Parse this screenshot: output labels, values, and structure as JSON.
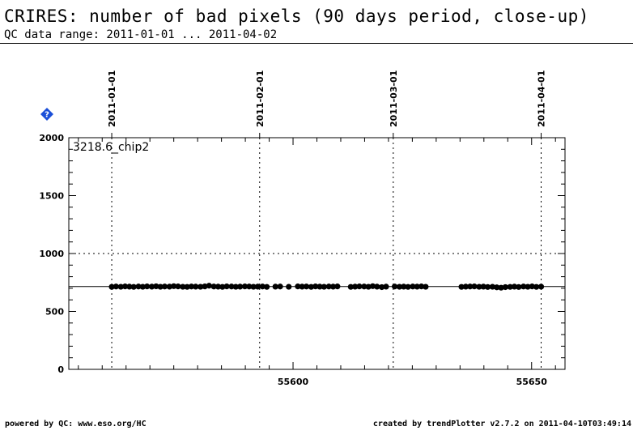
{
  "header": {
    "title": "CRIRES: number of bad pixels (90 days period, close-up)",
    "subtitle": "QC data range: 2011-01-01 ... 2011-04-02"
  },
  "footer": {
    "left": "powered by QC: www.eso.org/HC",
    "right": "created by trendPlotter v2.7.2 on 2011-04-10T03:49:14"
  },
  "colors": {
    "marker": "#000000",
    "help_icon": "#1a4fd8"
  },
  "icons": {
    "help": "help-diamond-icon"
  },
  "chart_data": {
    "type": "scatter",
    "panel_label": "3218.6_chip2",
    "xlim": [
      55553,
      55657
    ],
    "ylim": [
      0,
      2000
    ],
    "y_ticks": [
      0,
      500,
      1000,
      1500,
      2000
    ],
    "x_ticks": [
      55600,
      55650
    ],
    "date_markers": [
      {
        "mjd": 55562,
        "label": "2011-01-01"
      },
      {
        "mjd": 55593,
        "label": "2011-02-01"
      },
      {
        "mjd": 55621,
        "label": "2011-03-01"
      },
      {
        "mjd": 55652,
        "label": "2011-04-01"
      }
    ],
    "grid_y": [
      1000
    ],
    "reference_line": 715,
    "series": [
      {
        "x": [
          55562.0,
          55562.9,
          55563.9,
          55564.8,
          55565.7,
          55566.6,
          55567.6,
          55568.5,
          55569.4,
          55570.4,
          55571.3,
          55572.2,
          55573.1,
          55574.1,
          55575.0,
          55575.9,
          55576.9,
          55577.8,
          55578.7,
          55579.6,
          55580.6,
          55581.5,
          55582.4,
          55583.4,
          55584.3,
          55585.2,
          55586.1,
          55587.1,
          55588.0,
          55588.9,
          55589.9,
          55590.8,
          55591.7,
          55592.6,
          55593.6,
          55594.5,
          55596.3,
          55597.3,
          55599.1,
          55601.0,
          55601.9,
          55602.8,
          55603.8,
          55604.7,
          55605.6,
          55606.5,
          55607.5,
          55608.4,
          55609.3,
          55612.1,
          55613.0,
          55613.9,
          55614.9,
          55615.8,
          55616.7,
          55617.6,
          55618.6,
          55619.5,
          55621.3,
          55622.3,
          55623.2,
          55624.1,
          55625.1,
          55626.0,
          55626.9,
          55627.8,
          55635.3,
          55636.2,
          55637.1,
          55638.0,
          55639.0,
          55639.9,
          55640.8,
          55641.8,
          55642.7,
          55643.6,
          55644.5,
          55645.5,
          55646.4,
          55647.3,
          55648.3,
          55649.2,
          55650.1,
          55651.0,
          55652.0
        ],
        "y": [
          712,
          715,
          713,
          716,
          714,
          712,
          715,
          713,
          716,
          714,
          717,
          713,
          715,
          714,
          718,
          716,
          713,
          712,
          715,
          714,
          713,
          716,
          722,
          715,
          714,
          712,
          716,
          715,
          713,
          714,
          716,
          715,
          713,
          714,
          715,
          712,
          714,
          715,
          713,
          716,
          714,
          715,
          712,
          716,
          714,
          713,
          715,
          714,
          716,
          712,
          714,
          716,
          715,
          713,
          718,
          714,
          710,
          714,
          715,
          713,
          714,
          712,
          715,
          714,
          716,
          713,
          712,
          714,
          715,
          716,
          713,
          714,
          711,
          713,
          708,
          705,
          710,
          712,
          714,
          711,
          715,
          713,
          716,
          712,
          714
        ]
      }
    ]
  }
}
